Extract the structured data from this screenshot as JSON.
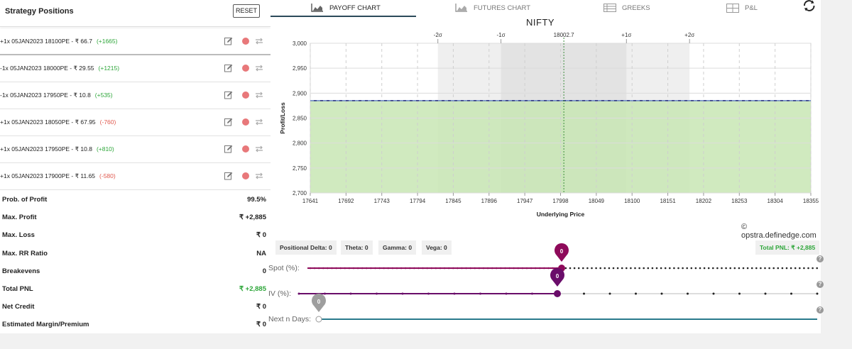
{
  "left_panel": {
    "title": "Strategy Positions",
    "reset_label": "RESET",
    "positions": [
      {
        "text": "+1x  05JAN2023  18100PE  - ₹ 66.7",
        "pnl": "(+1665)",
        "pnl_sign": "pos"
      },
      {
        "text": "-1x  05JAN2023  18000PE  - ₹ 29.55",
        "pnl": "(+1215)",
        "pnl_sign": "pos"
      },
      {
        "text": "-1x  05JAN2023  17950PE  - ₹ 10.8",
        "pnl": "(+535)",
        "pnl_sign": "pos"
      },
      {
        "text": "+1x  05JAN2023  18050PE  - ₹ 67.95",
        "pnl": "(-760)",
        "pnl_sign": "neg"
      },
      {
        "text": "+1x  05JAN2023  17950PE  - ₹ 10.8",
        "pnl": "(+810)",
        "pnl_sign": "pos"
      },
      {
        "text": "+1x  05JAN2023  17900PE  - ₹ 11.65",
        "pnl": "(-580)",
        "pnl_sign": "neg"
      }
    ],
    "stats": [
      {
        "label": "Prob. of Profit",
        "value": "99.5%"
      },
      {
        "label": "Max. Profit",
        "value": "₹ +2,885"
      },
      {
        "label": "Max. Loss",
        "value": "₹ 0"
      },
      {
        "label": "Max. RR Ratio",
        "value": "NA"
      },
      {
        "label": "Breakevens",
        "value": "0"
      },
      {
        "label": "Total PNL",
        "value": "₹ +2,885",
        "color": "green"
      },
      {
        "label": "Net Credit",
        "value": "₹ 0"
      },
      {
        "label": "Estimated Margin/Premium",
        "value": "₹ 0"
      }
    ]
  },
  "tabs": [
    {
      "label": "PAYOFF CHART",
      "icon": "area-chart-icon",
      "active": true
    },
    {
      "label": "FUTURES CHART",
      "icon": "area-chart-icon",
      "active": false
    },
    {
      "label": "GREEKS",
      "icon": "table-icon",
      "active": false
    },
    {
      "label": "P&L",
      "icon": "grid-icon",
      "active": false
    }
  ],
  "chart": {
    "title": "NIFTY",
    "watermark": "opstra.definedge.com"
  },
  "chart_data": {
    "type": "area",
    "title": "NIFTY",
    "xlabel": "Underlying Price",
    "ylabel": "Profit/Loss",
    "xlim": [
      17641,
      18355
    ],
    "ylim": [
      2700,
      3000
    ],
    "x_ticks": [
      17641,
      17692,
      17743,
      17794,
      17845,
      17896,
      17947,
      17998,
      18049,
      18100,
      18151,
      18202,
      18253,
      18304,
      18355
    ],
    "y_ticks": [
      2700,
      2750,
      2800,
      2850,
      2900,
      2950,
      3000
    ],
    "series": [
      {
        "x": [
          17641,
          18355
        ],
        "y": [
          2885,
          2885
        ]
      }
    ],
    "spot": 18002.7,
    "spot_label": "18002.7",
    "sigma_bands": [
      {
        "label": "-2σ",
        "x": 17823
      },
      {
        "label": "-1σ",
        "x": 17913
      },
      {
        "label": "+1σ",
        "x": 18092
      },
      {
        "label": "+2σ",
        "x": 18182
      }
    ],
    "grid": true,
    "fill_color": "#c8e6b4",
    "line_color": "#1a237e"
  },
  "greeks": {
    "delta": "Positional Delta: 0",
    "theta": "Theta: 0",
    "gamma": "Gamma: 0",
    "vega": "Vega: 0",
    "total_pnl": "Total PNL: ₹ +2,885"
  },
  "sliders": {
    "spot": {
      "label": "Spot (%):",
      "value": "0",
      "color": "#8e0a5a"
    },
    "iv": {
      "label": "IV (%):",
      "value": "0",
      "color": "#6a0d6a"
    },
    "days": {
      "label": "Next n Days:",
      "value": "0",
      "color": "#9e9e9e",
      "track_color": "#2a7a8c"
    }
  },
  "help_glyph": "?"
}
